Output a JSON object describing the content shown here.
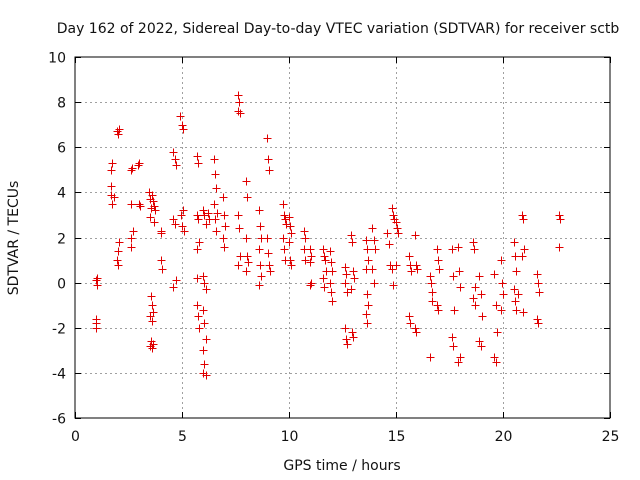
{
  "chart_data": {
    "type": "scatter",
    "title": "Day 162 of 2022, Sidereal Day-to-day VTEC variation (SDTVAR) for receiver sctb",
    "xlabel": "GPS time / hours",
    "ylabel": "SDTVAR / TECUs",
    "xlim": [
      0,
      25
    ],
    "ylim": [
      -6,
      10
    ],
    "xticks": [
      0,
      5,
      10,
      15,
      20,
      25
    ],
    "yticks": [
      -6,
      -4,
      -2,
      0,
      2,
      4,
      6,
      8,
      10
    ],
    "grid": true,
    "marker": "+",
    "colors": {
      "marker": "#e00000",
      "grid": "#a0a0a0",
      "axis": "#000000"
    },
    "series": [
      {
        "name": "sctb",
        "points": [
          [
            1.0,
            -2.0
          ],
          [
            1.0,
            -1.8
          ],
          [
            1.0,
            -1.6
          ],
          [
            1.05,
            0.2
          ],
          [
            1.0,
            0.1
          ],
          [
            1.05,
            -0.1
          ],
          [
            1.7,
            3.9
          ],
          [
            1.7,
            4.3
          ],
          [
            1.7,
            5.0
          ],
          [
            1.75,
            5.3
          ],
          [
            1.75,
            3.5
          ],
          [
            1.8,
            3.8
          ],
          [
            1.95,
            6.7
          ],
          [
            2.0,
            6.6
          ],
          [
            2.05,
            6.8
          ],
          [
            1.95,
            1.0
          ],
          [
            2.0,
            0.8
          ],
          [
            2.0,
            1.4
          ],
          [
            2.05,
            1.8
          ],
          [
            2.6,
            5.0
          ],
          [
            2.65,
            5.1
          ],
          [
            2.6,
            3.5
          ],
          [
            2.6,
            2.0
          ],
          [
            2.6,
            1.6
          ],
          [
            2.7,
            2.3
          ],
          [
            2.95,
            5.2
          ],
          [
            3.0,
            5.3
          ],
          [
            3.0,
            3.5
          ],
          [
            3.05,
            3.4
          ],
          [
            3.45,
            4.0
          ],
          [
            3.5,
            3.7
          ],
          [
            3.55,
            3.3
          ],
          [
            3.5,
            2.9
          ],
          [
            3.6,
            3.9
          ],
          [
            3.65,
            3.6
          ],
          [
            3.7,
            2.7
          ],
          [
            3.5,
            -2.8
          ],
          [
            3.55,
            -2.6
          ],
          [
            3.6,
            -2.9
          ],
          [
            3.65,
            -2.7
          ],
          [
            3.5,
            -1.5
          ],
          [
            3.6,
            -1.7
          ],
          [
            3.55,
            -0.6
          ],
          [
            3.6,
            -1.0
          ],
          [
            3.65,
            -1.3
          ],
          [
            3.7,
            3.4
          ],
          [
            3.75,
            3.2
          ],
          [
            4.0,
            2.3
          ],
          [
            4.0,
            1.0
          ],
          [
            4.05,
            0.6
          ],
          [
            4.0,
            2.2
          ],
          [
            4.6,
            5.8
          ],
          [
            4.65,
            5.5
          ],
          [
            4.7,
            5.2
          ],
          [
            4.6,
            2.8
          ],
          [
            4.65,
            2.6
          ],
          [
            4.6,
            -0.2
          ],
          [
            4.7,
            0.1
          ],
          [
            4.9,
            7.4
          ],
          [
            5.0,
            7.0
          ],
          [
            5.05,
            6.8
          ],
          [
            4.95,
            3.0
          ],
          [
            5.0,
            2.5
          ],
          [
            5.1,
            2.3
          ],
          [
            5.05,
            3.2
          ],
          [
            5.7,
            5.6
          ],
          [
            5.75,
            5.3
          ],
          [
            5.7,
            3.0
          ],
          [
            5.75,
            2.8
          ],
          [
            5.8,
            1.8
          ],
          [
            5.7,
            1.5
          ],
          [
            5.7,
            -1.0
          ],
          [
            5.75,
            -1.5
          ],
          [
            5.8,
            -2.0
          ],
          [
            5.7,
            0.2
          ],
          [
            6.0,
            3.2
          ],
          [
            6.05,
            3.0
          ],
          [
            6.1,
            2.6
          ],
          [
            6.0,
            0.3
          ],
          [
            6.05,
            0.0
          ],
          [
            6.1,
            -0.3
          ],
          [
            6.0,
            -1.2
          ],
          [
            6.05,
            -1.8
          ],
          [
            6.1,
            -2.5
          ],
          [
            6.0,
            -3.0
          ],
          [
            6.05,
            -3.6
          ],
          [
            6.0,
            -4.0
          ],
          [
            6.1,
            -4.1
          ],
          [
            6.2,
            3.1
          ],
          [
            6.25,
            2.8
          ],
          [
            6.5,
            5.5
          ],
          [
            6.55,
            4.8
          ],
          [
            6.6,
            4.2
          ],
          [
            6.5,
            3.5
          ],
          [
            6.55,
            2.8
          ],
          [
            6.6,
            2.3
          ],
          [
            6.65,
            3.1
          ],
          [
            6.9,
            3.8
          ],
          [
            6.95,
            3.0
          ],
          [
            7.0,
            2.5
          ],
          [
            6.9,
            2.0
          ],
          [
            6.95,
            1.6
          ],
          [
            7.6,
            8.3
          ],
          [
            7.65,
            8.0
          ],
          [
            7.6,
            7.6
          ],
          [
            7.7,
            7.5
          ],
          [
            7.6,
            3.0
          ],
          [
            7.65,
            2.4
          ],
          [
            7.7,
            1.2
          ],
          [
            7.6,
            0.8
          ],
          [
            8.0,
            4.5
          ],
          [
            8.05,
            3.8
          ],
          [
            8.0,
            2.0
          ],
          [
            8.05,
            1.2
          ],
          [
            8.1,
            0.9
          ],
          [
            8.0,
            0.5
          ],
          [
            8.6,
            3.2
          ],
          [
            8.65,
            2.5
          ],
          [
            8.7,
            2.0
          ],
          [
            8.6,
            1.5
          ],
          [
            8.65,
            0.8
          ],
          [
            8.7,
            0.3
          ],
          [
            8.6,
            -0.1
          ],
          [
            8.95,
            6.4
          ],
          [
            9.0,
            5.5
          ],
          [
            9.05,
            5.0
          ],
          [
            8.95,
            2.0
          ],
          [
            9.0,
            1.3
          ],
          [
            9.05,
            0.8
          ],
          [
            9.1,
            0.5
          ],
          [
            9.7,
            3.5
          ],
          [
            9.75,
            3.0
          ],
          [
            9.8,
            2.8
          ],
          [
            9.85,
            2.6
          ],
          [
            9.7,
            2.0
          ],
          [
            9.75,
            1.5
          ],
          [
            9.8,
            1.0
          ],
          [
            10.0,
            2.9
          ],
          [
            10.05,
            2.5
          ],
          [
            10.1,
            2.2
          ],
          [
            10.0,
            1.8
          ],
          [
            10.05,
            1.0
          ],
          [
            10.1,
            0.8
          ],
          [
            10.7,
            2.3
          ],
          [
            10.75,
            2.0
          ],
          [
            10.7,
            1.5
          ],
          [
            10.75,
            1.0
          ],
          [
            11.0,
            1.5
          ],
          [
            11.05,
            1.2
          ],
          [
            11.0,
            0.9
          ],
          [
            11.05,
            0.0
          ],
          [
            11.0,
            -0.1
          ],
          [
            11.6,
            1.5
          ],
          [
            11.65,
            1.2
          ],
          [
            11.7,
            1.0
          ],
          [
            11.75,
            0.5
          ],
          [
            11.6,
            0.2
          ],
          [
            11.65,
            -0.2
          ],
          [
            11.9,
            1.4
          ],
          [
            11.95,
            0.9
          ],
          [
            12.0,
            0.5
          ],
          [
            11.9,
            0.0
          ],
          [
            11.95,
            -0.4
          ],
          [
            12.0,
            -0.8
          ],
          [
            12.6,
            0.7
          ],
          [
            12.65,
            0.4
          ],
          [
            12.6,
            0.0
          ],
          [
            12.7,
            -0.4
          ],
          [
            12.6,
            -2.0
          ],
          [
            12.65,
            -2.5
          ],
          [
            12.7,
            -2.7
          ],
          [
            12.9,
            2.1
          ],
          [
            12.95,
            1.8
          ],
          [
            13.0,
            0.5
          ],
          [
            13.05,
            0.2
          ],
          [
            12.9,
            -0.3
          ],
          [
            12.95,
            -2.2
          ],
          [
            13.0,
            -2.4
          ],
          [
            13.6,
            1.9
          ],
          [
            13.65,
            1.5
          ],
          [
            13.7,
            1.0
          ],
          [
            13.6,
            0.6
          ],
          [
            13.65,
            -0.5
          ],
          [
            13.7,
            -1.0
          ],
          [
            13.6,
            -1.4
          ],
          [
            13.65,
            -1.8
          ],
          [
            13.9,
            2.4
          ],
          [
            13.95,
            1.9
          ],
          [
            14.0,
            1.5
          ],
          [
            13.9,
            0.6
          ],
          [
            13.95,
            0.0
          ],
          [
            14.6,
            2.2
          ],
          [
            14.65,
            1.7
          ],
          [
            14.7,
            0.8
          ],
          [
            14.8,
            3.3
          ],
          [
            14.85,
            3.0
          ],
          [
            14.9,
            2.8
          ],
          [
            14.8,
            0.6
          ],
          [
            14.85,
            -0.1
          ],
          [
            15.0,
            2.7
          ],
          [
            15.05,
            2.4
          ],
          [
            15.1,
            2.2
          ],
          [
            15.0,
            0.8
          ],
          [
            15.6,
            1.2
          ],
          [
            15.65,
            0.8
          ],
          [
            15.7,
            0.5
          ],
          [
            15.6,
            -1.5
          ],
          [
            15.65,
            -1.8
          ],
          [
            15.9,
            2.1
          ],
          [
            15.95,
            0.8
          ],
          [
            16.0,
            0.6
          ],
          [
            15.9,
            -2.0
          ],
          [
            15.95,
            -2.2
          ],
          [
            16.6,
            0.3
          ],
          [
            16.65,
            0.0
          ],
          [
            16.7,
            -0.4
          ],
          [
            16.6,
            -3.3
          ],
          [
            16.7,
            -0.8
          ],
          [
            16.9,
            1.5
          ],
          [
            16.95,
            1.0
          ],
          [
            17.0,
            0.6
          ],
          [
            16.9,
            -1.0
          ],
          [
            16.95,
            -1.2
          ],
          [
            17.6,
            1.5
          ],
          [
            17.65,
            0.3
          ],
          [
            17.7,
            -1.2
          ],
          [
            17.6,
            -2.4
          ],
          [
            17.65,
            -2.8
          ],
          [
            17.9,
            1.6
          ],
          [
            17.95,
            0.5
          ],
          [
            18.0,
            -3.3
          ],
          [
            17.9,
            -3.5
          ],
          [
            18.0,
            -0.2
          ],
          [
            18.6,
            1.8
          ],
          [
            18.65,
            1.5
          ],
          [
            18.7,
            -0.2
          ],
          [
            18.6,
            -0.7
          ],
          [
            18.7,
            -1.0
          ],
          [
            18.9,
            0.3
          ],
          [
            18.95,
            -0.5
          ],
          [
            19.0,
            -1.5
          ],
          [
            18.9,
            -2.6
          ],
          [
            18.95,
            -2.8
          ],
          [
            19.6,
            0.4
          ],
          [
            19.65,
            -1.0
          ],
          [
            19.7,
            -2.2
          ],
          [
            19.6,
            -3.3
          ],
          [
            19.65,
            -3.5
          ],
          [
            19.9,
            1.0
          ],
          [
            19.95,
            0.0
          ],
          [
            20.0,
            -0.5
          ],
          [
            19.9,
            -1.2
          ],
          [
            20.5,
            1.8
          ],
          [
            20.55,
            1.2
          ],
          [
            20.6,
            0.5
          ],
          [
            20.5,
            -0.3
          ],
          [
            20.55,
            -0.8
          ],
          [
            20.6,
            -1.2
          ],
          [
            20.7,
            -0.5
          ],
          [
            20.9,
            3.0
          ],
          [
            20.95,
            2.8
          ],
          [
            21.0,
            1.5
          ],
          [
            20.9,
            1.2
          ],
          [
            20.95,
            -1.3
          ],
          [
            21.6,
            0.4
          ],
          [
            21.65,
            0.0
          ],
          [
            21.7,
            -0.4
          ],
          [
            21.6,
            -1.6
          ],
          [
            21.65,
            -1.8
          ],
          [
            22.6,
            3.0
          ],
          [
            22.65,
            2.8
          ],
          [
            22.6,
            1.6
          ]
        ]
      }
    ]
  }
}
